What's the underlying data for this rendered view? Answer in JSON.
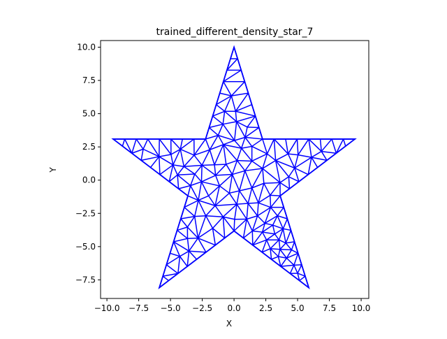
{
  "chart_data": {
    "type": "mesh",
    "title": "trained_different_density_star_7",
    "xlabel": "X",
    "ylabel": "Y",
    "xlim": [
      -10.5,
      10.6
    ],
    "ylim": [
      -8.9,
      10.5
    ],
    "xticks": [
      -10.0,
      -7.5,
      -5.0,
      -2.5,
      0.0,
      2.5,
      5.0,
      7.5,
      10.0
    ],
    "yticks": [
      -7.5,
      -5.0,
      -2.5,
      0.0,
      2.5,
      5.0,
      7.5,
      10.0
    ],
    "xtick_labels": [
      "−10.0",
      "−7.5",
      "−5.0",
      "−2.5",
      "0.0",
      "2.5",
      "5.0",
      "7.5",
      "10.0"
    ],
    "ytick_labels": [
      "−7.5",
      "−5.0",
      "−2.5",
      "0.0",
      "2.5",
      "5.0",
      "7.5",
      "10.0"
    ],
    "grid": false,
    "line_color": "#0000ff",
    "outline": [
      [
        0.0,
        10.0
      ],
      [
        2.24,
        3.09
      ],
      [
        9.51,
        3.09
      ],
      [
        3.63,
        -1.18
      ],
      [
        5.88,
        -8.09
      ],
      [
        0.0,
        -3.82
      ],
      [
        -5.88,
        -8.09
      ],
      [
        -3.63,
        -1.18
      ],
      [
        -9.51,
        3.09
      ],
      [
        -2.24,
        3.09
      ]
    ]
  }
}
